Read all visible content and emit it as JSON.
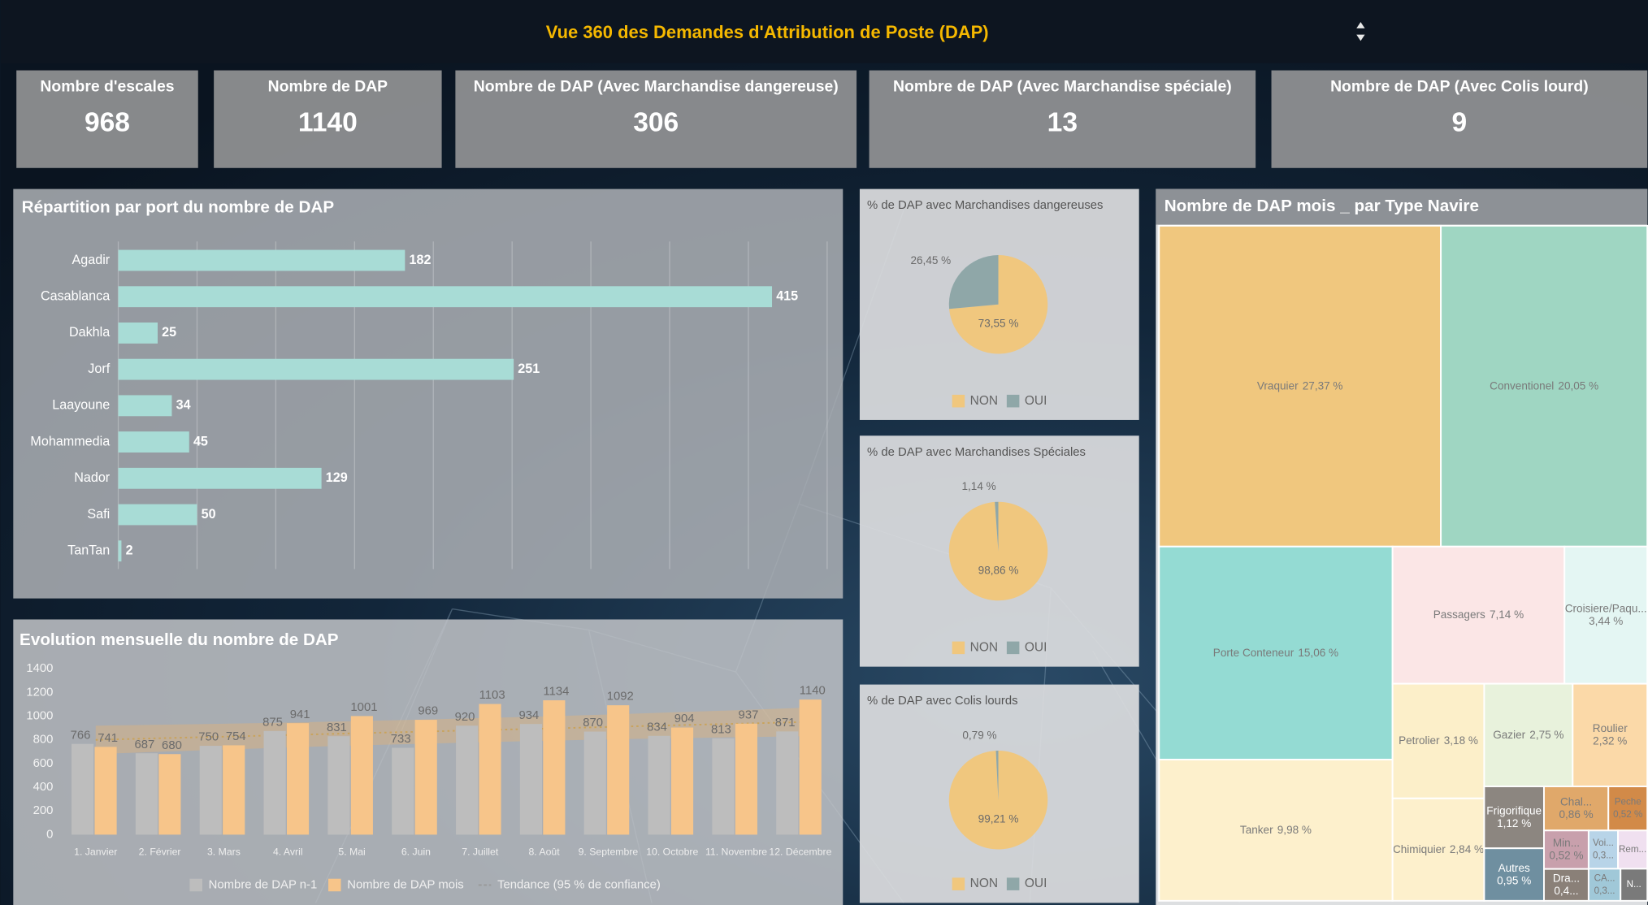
{
  "header": {
    "title": "Vue 360 des Demandes d'Attribution de Poste (DAP)"
  },
  "kpis": [
    {
      "label": "Nombre d'escales",
      "value": 968
    },
    {
      "label": "Nombre de DAP",
      "value": 1140
    },
    {
      "label": "Nombre de DAP (Avec Marchandise dangereuse)",
      "value": 306
    },
    {
      "label": "Nombre de DAP (Avec Marchandise spéciale)",
      "value": 13
    },
    {
      "label": "Nombre de DAP (Avec Colis lourd)",
      "value": 9
    }
  ],
  "chart_data": [
    {
      "type": "bar",
      "title": "Répartition par port du nombre de DAP",
      "categories": [
        "Agadir",
        "Casablanca",
        "Dakhla",
        "Jorf",
        "Laayoune",
        "Mohammedia",
        "Nador",
        "Safi",
        "TanTan"
      ],
      "values": [
        182,
        415,
        25,
        251,
        34,
        45,
        129,
        50,
        2
      ],
      "color": "#a8dcd6",
      "xlim": [
        0,
        450
      ],
      "xticks": [
        0,
        50,
        100,
        150,
        200,
        250,
        300,
        350,
        400,
        450
      ],
      "grid": true
    },
    {
      "type": "pie",
      "title": "% de DAP avec Marchandises dangereuses",
      "categories": [
        "NON",
        "OUI"
      ],
      "values": [
        73.55,
        26.45
      ],
      "value_labels": [
        "73,55 %",
        "26,45 %"
      ],
      "colors": [
        "#f0c77e",
        "#8fa7a8"
      ]
    },
    {
      "type": "pie",
      "title": "% de DAP avec Marchandises Spéciales",
      "categories": [
        "NON",
        "OUI"
      ],
      "values": [
        98.86,
        1.14
      ],
      "value_labels": [
        "98,86 %",
        "1,14 %"
      ],
      "colors": [
        "#f0c77e",
        "#8fa7a8"
      ]
    },
    {
      "type": "pie",
      "title": "% de DAP avec Colis lourds",
      "categories": [
        "NON",
        "OUI"
      ],
      "values": [
        99.21,
        0.79
      ],
      "value_labels": [
        "99,21 %",
        "0,79 %"
      ],
      "colors": [
        "#f0c77e",
        "#8fa7a8"
      ]
    },
    {
      "type": "bar_line",
      "title": "Evolution mensuelle du nombre de DAP",
      "categories": [
        "1. Janvier",
        "2. Février",
        "3. Mars",
        "4. Avril",
        "5. Mai",
        "6. Juin",
        "7. Juillet",
        "8. Août",
        "9. Septembre",
        "10. Octobre",
        "11. Novembre",
        "12. Décembre"
      ],
      "ylim": [
        0,
        1400
      ],
      "yticks": [
        0,
        200,
        400,
        600,
        800,
        1000,
        1200,
        1400
      ],
      "series": [
        {
          "name": "Nombre de DAP n-1",
          "type": "bar",
          "color": "#bdbdbd",
          "values": [
            766,
            687,
            750,
            875,
            831,
            733,
            920,
            934,
            870,
            834,
            813,
            871
          ]
        },
        {
          "name": "Nombre de DAP mois",
          "type": "bar",
          "color": "#f7c58a",
          "values": [
            741,
            680,
            754,
            941,
            1001,
            969,
            1103,
            1134,
            1092,
            904,
            937,
            1140
          ]
        },
        {
          "name": "Tendance (95 % de confiance)",
          "type": "line",
          "color": "#f0b46a",
          "values": [
            800,
            814,
            827,
            841,
            855,
            868,
            882,
            895,
            909,
            923,
            936,
            950
          ],
          "lower": [
            680,
            700,
            718,
            736,
            752,
            766,
            780,
            792,
            804,
            814,
            822,
            830
          ],
          "upper": [
            920,
            928,
            936,
            946,
            958,
            970,
            984,
            998,
            1014,
            1032,
            1050,
            1070
          ]
        }
      ]
    },
    {
      "type": "treemap",
      "title": "Nombre de DAP mois _ par Type Navire",
      "categories": [
        "Vraquier",
        "Conventionel",
        "Porte Conteneur",
        "Tanker",
        "Passagers",
        "Croisiere/Paqu...",
        "Petrolier",
        "Chimiquier",
        "Gazier",
        "Roulier",
        "Frigorifique",
        "Autres",
        "Chal...",
        "Peche",
        "Min...",
        "Dra...",
        "Voi...",
        "Rem...",
        "CA...",
        "N..."
      ],
      "values": [
        27.37,
        20.05,
        15.06,
        9.98,
        7.14,
        3.44,
        3.18,
        2.84,
        2.75,
        2.32,
        1.12,
        0.95,
        0.86,
        0.52,
        0.52,
        0.43,
        0.34,
        0.34,
        0.31,
        0.26
      ],
      "value_labels": [
        "27,37 %",
        "20,05 %",
        "15,06 %",
        "9,98 %",
        "7,14 %",
        "3,44 %",
        "3,18 %",
        "2,84 %",
        "2,75 %",
        "2,32 %",
        "1,12 %",
        "0,95 %",
        "0,86 %",
        "0,52 %",
        "0,52 %",
        "0,4...",
        "0,3...",
        null,
        "0,3...",
        null
      ],
      "colors": [
        "#f0c77e",
        "#9fd6c2",
        "#94dbd3",
        "#fdf0cc",
        "#fbe6e6",
        "#e4f6f3",
        "#fcefc9",
        "#fdf0cc",
        "#e8f2dc",
        "#fbd9a8",
        "#8c8680",
        "#6f8fa0",
        "#e0a86a",
        "#d28a48",
        "#c8a0ac",
        "#8a8078",
        "#b8d4e8",
        "#f0e0f0",
        "#a0c8d8",
        "#7a7a7a"
      ]
    }
  ]
}
